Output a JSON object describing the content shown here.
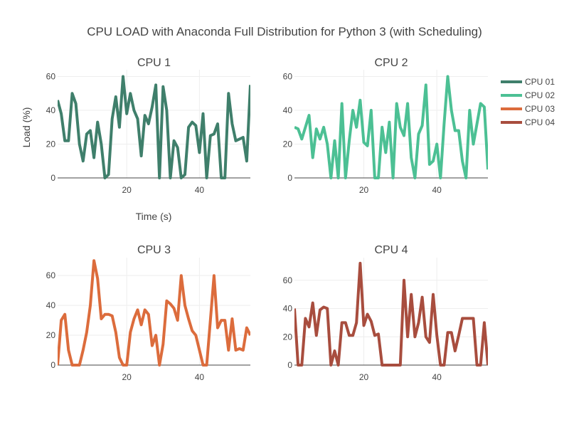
{
  "chart_data": {
    "type": "line",
    "title": "CPU LOAD with Anaconda Full Distribution for Python 3 (with Scheduling)",
    "ylabel": "Load (%)",
    "xlabel": "Time (s)",
    "legend": {
      "placement": "right",
      "entries": [
        "CPU 01",
        "CPU 02",
        "CPU 03",
        "CPU 04"
      ]
    },
    "x": [
      1,
      2,
      3,
      4,
      5,
      6,
      7,
      8,
      9,
      10,
      11,
      12,
      13,
      14,
      15,
      16,
      17,
      18,
      19,
      20,
      21,
      22,
      23,
      24,
      25,
      26,
      27,
      28,
      29,
      30,
      31,
      32,
      33,
      34,
      35,
      36,
      37,
      38,
      39,
      40,
      41,
      42,
      43,
      44,
      45,
      46,
      47,
      48,
      49,
      50,
      51,
      52,
      53,
      54
    ],
    "subplots": [
      {
        "title": "CPU 1",
        "series_name": "CPU 01",
        "color": "#3f7f6b",
        "xlim": [
          1,
          54
        ],
        "ylim": [
          0,
          64
        ],
        "xticks": [
          20,
          40
        ],
        "yticks": [
          0,
          20,
          40,
          60
        ],
        "values": [
          46,
          38,
          22,
          22,
          50,
          44,
          20,
          10,
          26,
          28,
          12,
          33,
          20,
          0,
          2,
          35,
          48,
          30,
          60,
          38,
          50,
          40,
          35,
          13,
          37,
          32,
          42,
          55,
          0,
          54,
          40,
          0,
          22,
          18,
          0,
          2,
          30,
          33,
          31,
          15,
          38,
          0,
          25,
          26,
          32,
          0,
          0,
          50,
          32,
          22,
          23,
          24,
          10,
          55
        ]
      },
      {
        "title": "CPU 2",
        "series_name": "CPU 02",
        "color": "#4cc094",
        "xlim": [
          1,
          54
        ],
        "ylim": [
          0,
          64
        ],
        "xticks": [
          20,
          40
        ],
        "yticks": [
          0,
          20,
          40,
          60
        ],
        "values": [
          30,
          29,
          23,
          30,
          37,
          12,
          29,
          23,
          30,
          20,
          0,
          22,
          0,
          44,
          0,
          22,
          40,
          30,
          46,
          21,
          19,
          40,
          0,
          0,
          30,
          15,
          33,
          0,
          44,
          30,
          25,
          44,
          12,
          0,
          26,
          31,
          55,
          8,
          10,
          20,
          0,
          32,
          60,
          40,
          28,
          28,
          10,
          0,
          40,
          20,
          32,
          44,
          42,
          5
        ]
      },
      {
        "title": "CPU 3",
        "series_name": "CPU 03",
        "color": "#dc6c3c",
        "xlim": [
          1,
          54
        ],
        "ylim": [
          0,
          72
        ],
        "xticks": [
          20,
          40
        ],
        "yticks": [
          0,
          20,
          40,
          60
        ],
        "values": [
          0,
          30,
          34,
          10,
          0,
          0,
          0,
          10,
          22,
          40,
          70,
          58,
          31,
          34,
          34,
          33,
          22,
          5,
          0,
          0,
          22,
          31,
          37,
          27,
          37,
          34,
          13,
          20,
          0,
          14,
          43,
          41,
          38,
          30,
          60,
          40,
          31,
          23,
          20,
          10,
          0,
          0,
          30,
          60,
          25,
          30,
          30,
          10,
          31,
          10,
          11,
          10,
          25,
          20
        ]
      },
      {
        "title": "CPU 4",
        "series_name": "CPU 04",
        "color": "#a84d3e",
        "xlim": [
          1,
          54
        ],
        "ylim": [
          0,
          76
        ],
        "xticks": [
          20,
          40
        ],
        "yticks": [
          0,
          20,
          40,
          60
        ],
        "values": [
          40,
          0,
          0,
          33,
          27,
          44,
          21,
          39,
          41,
          40,
          0,
          10,
          0,
          30,
          30,
          21,
          21,
          30,
          72,
          28,
          36,
          31,
          21,
          22,
          0,
          0,
          0,
          0,
          0,
          0,
          60,
          20,
          50,
          20,
          30,
          48,
          20,
          16,
          50,
          21,
          0,
          0,
          23,
          23,
          10,
          21,
          33,
          33,
          33,
          33,
          0,
          0,
          30,
          0
        ]
      }
    ]
  }
}
